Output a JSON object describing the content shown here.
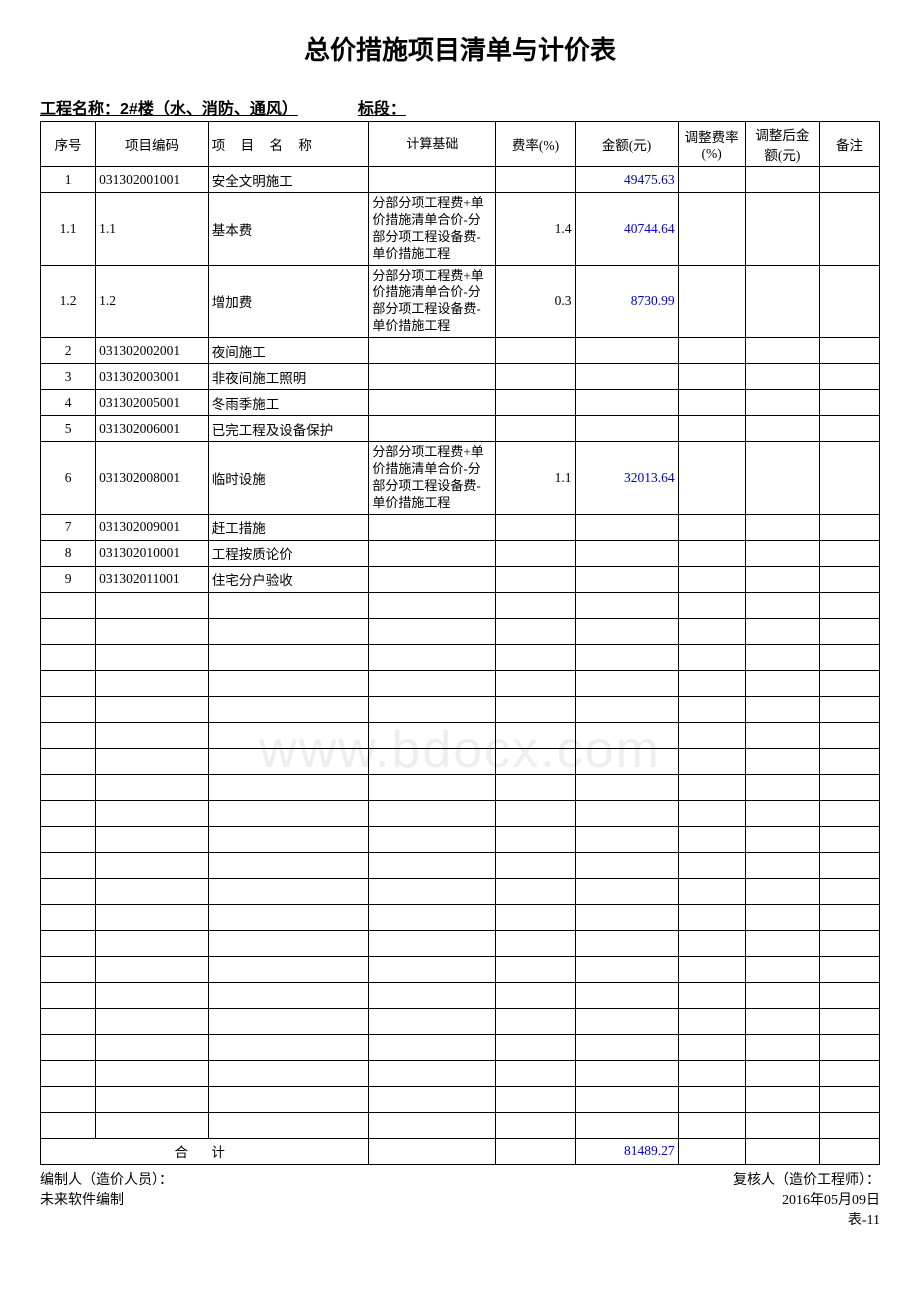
{
  "title": "总价措施项目清单与计价表",
  "meta": {
    "project_label": "工程名称：",
    "project_name": "2#楼（水、消防、通风）",
    "section_label": "标段：",
    "section_value": ""
  },
  "table": {
    "headers": {
      "idx": "序号",
      "code": "项目编码",
      "name": "项 目 名 称",
      "basis": "计算基础",
      "rate": "费率(%)",
      "amount": "金额(元)",
      "adj_rate": "调整费率(%)",
      "adj_amount": "调整后金额(元)",
      "note": "备注"
    },
    "rows": [
      {
        "idx": "1",
        "code": "031302001001",
        "name": "安全文明施工",
        "basis": "",
        "rate": "",
        "amount": "49475.63",
        "amount_blue": true
      },
      {
        "idx": "1.1",
        "code": "1.1",
        "name": "基本费",
        "basis": "分部分项工程费+单价措施清单合价-分部分项工程设备费-单价措施工程",
        "rate": "1.4",
        "amount": "40744.64",
        "amount_blue": true,
        "multi": true
      },
      {
        "idx": "1.2",
        "code": "1.2",
        "name": "增加费",
        "basis": "分部分项工程费+单价措施清单合价-分部分项工程设备费-单价措施工程",
        "rate": "0.3",
        "amount": "8730.99",
        "amount_blue": true,
        "multi": true
      },
      {
        "idx": "2",
        "code": "031302002001",
        "name": "夜间施工",
        "basis": "",
        "rate": "",
        "amount": ""
      },
      {
        "idx": "3",
        "code": "031302003001",
        "name": "非夜间施工照明",
        "basis": "",
        "rate": "",
        "amount": ""
      },
      {
        "idx": "4",
        "code": "031302005001",
        "name": "冬雨季施工",
        "basis": "",
        "rate": "",
        "amount": ""
      },
      {
        "idx": "5",
        "code": "031302006001",
        "name": "已完工程及设备保护",
        "basis": "",
        "rate": "",
        "amount": ""
      },
      {
        "idx": "6",
        "code": "031302008001",
        "name": "临时设施",
        "basis": "分部分项工程费+单价措施清单合价-分部分项工程设备费-单价措施工程",
        "rate": "1.1",
        "amount": "32013.64",
        "amount_blue": true,
        "multi": true
      },
      {
        "idx": "7",
        "code": "031302009001",
        "name": "赶工措施",
        "basis": "",
        "rate": "",
        "amount": ""
      },
      {
        "idx": "8",
        "code": "031302010001",
        "name": "工程按质论价",
        "basis": "",
        "rate": "",
        "amount": ""
      },
      {
        "idx": "9",
        "code": "031302011001",
        "name": "住宅分户验收",
        "basis": "",
        "rate": "",
        "amount": ""
      }
    ],
    "empty_rows": 21,
    "total": {
      "label": "合  计",
      "amount": "81489.27",
      "amount_blue": true
    }
  },
  "footer": {
    "left1": "编制人（造价人员）：",
    "right1": "复核人（造价工程师）：",
    "left2": "未来软件编制",
    "right2": "2016年05月09日",
    "right3": "表-11"
  },
  "watermark": "www.bdocx.com"
}
